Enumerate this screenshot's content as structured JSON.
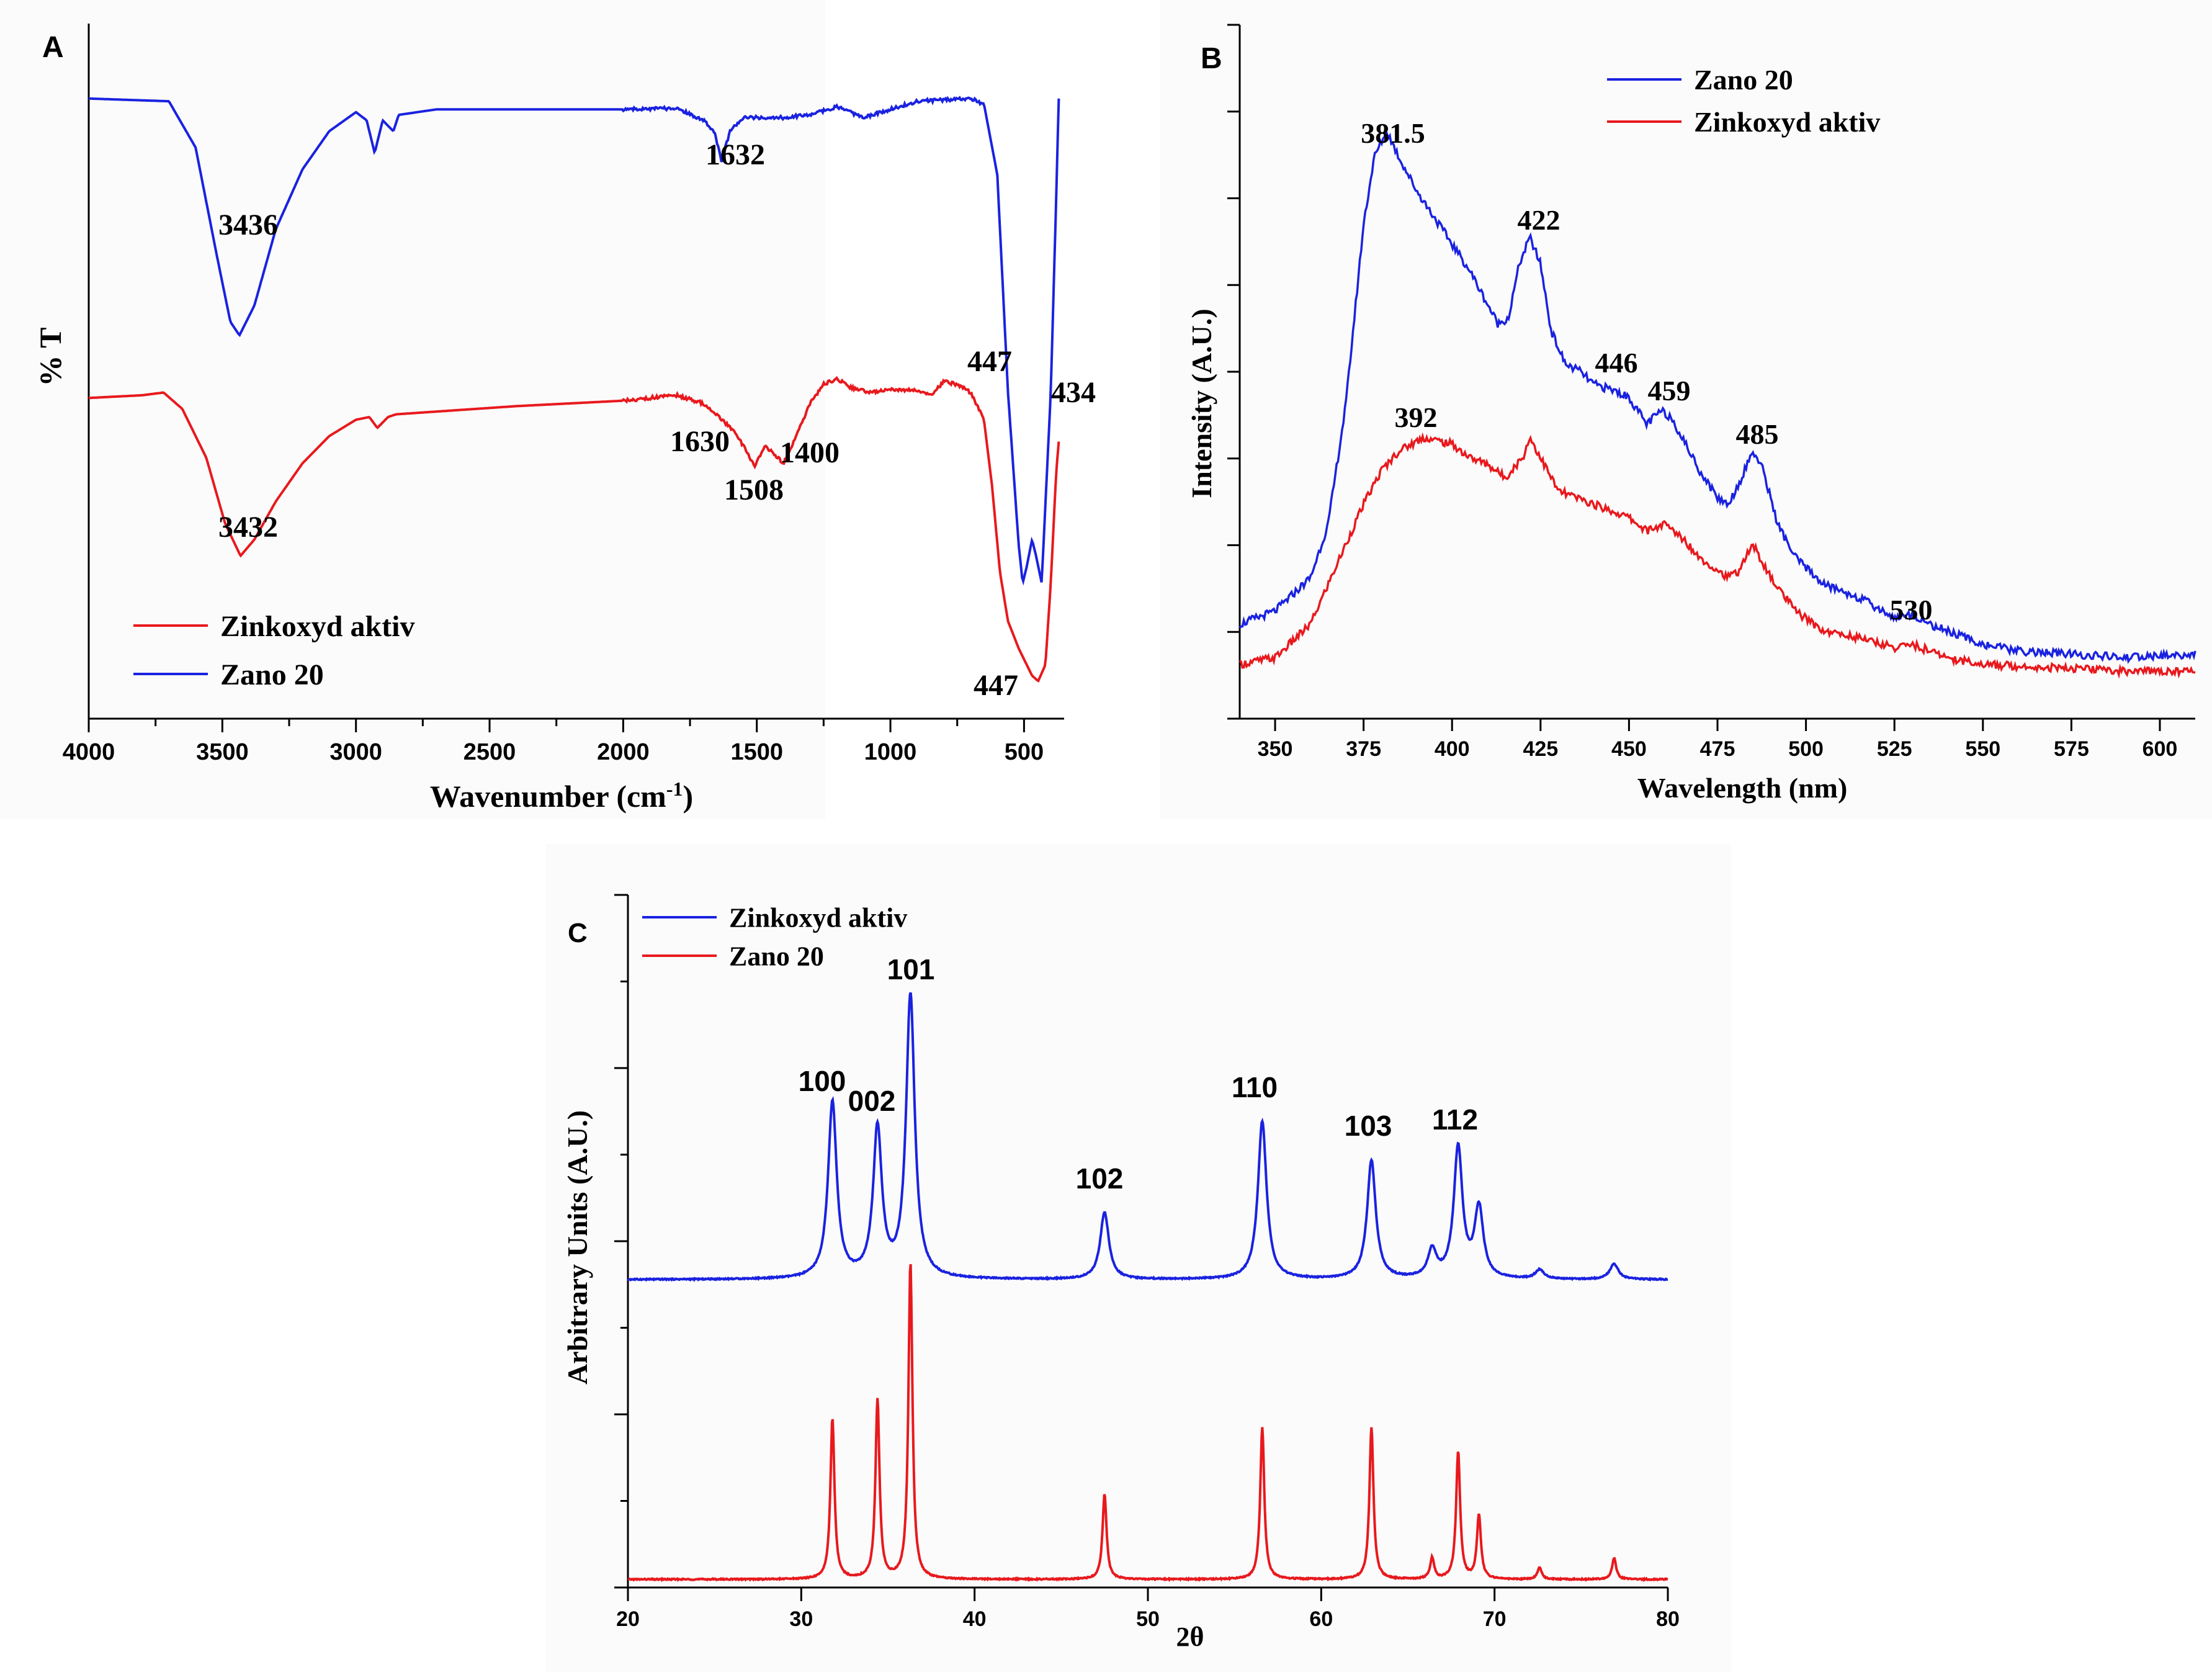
{
  "chart_data": [
    {
      "panel": "A",
      "type": "line",
      "xlabel": "Wavenumber (cm",
      "xlabel_sup": "-1",
      "xlabel_end": ")",
      "ylabel": "% T",
      "xlim": [
        4000,
        350
      ],
      "x_reversed": true,
      "x_ticks": [
        4000,
        3500,
        3000,
        2500,
        2000,
        1500,
        1000,
        500
      ],
      "legend": [
        {
          "name": "Zinkoxyd aktiv",
          "color": "#e8191d"
        },
        {
          "name": "Zano 20",
          "color": "#1a22e0"
        }
      ],
      "legend_position": "bottom-left",
      "series": [
        {
          "name": "Zano 20",
          "color": "#1a22e0",
          "points": [
            [
              4000,
              0.99
            ],
            [
              3700,
              0.985
            ],
            [
              3600,
              0.9
            ],
            [
              3520,
              0.7
            ],
            [
              3470,
              0.58
            ],
            [
              3436,
              0.555
            ],
            [
              3380,
              0.61
            ],
            [
              3300,
              0.75
            ],
            [
              3200,
              0.86
            ],
            [
              3100,
              0.93
            ],
            [
              3000,
              0.965
            ],
            [
              2960,
              0.95
            ],
            [
              2930,
              0.89
            ],
            [
              2900,
              0.95
            ],
            [
              2860,
              0.93
            ],
            [
              2840,
              0.96
            ],
            [
              2700,
              0.97
            ],
            [
              2000,
              0.97
            ],
            [
              1800,
              0.972
            ],
            [
              1700,
              0.95
            ],
            [
              1660,
              0.93
            ],
            [
              1632,
              0.875
            ],
            [
              1600,
              0.93
            ],
            [
              1550,
              0.955
            ],
            [
              1400,
              0.955
            ],
            [
              1300,
              0.96
            ],
            [
              1200,
              0.975
            ],
            [
              1100,
              0.955
            ],
            [
              1000,
              0.97
            ],
            [
              900,
              0.985
            ],
            [
              700,
              0.99
            ],
            [
              650,
              0.98
            ],
            [
              600,
              0.85
            ],
            [
              560,
              0.45
            ],
            [
              520,
              0.17
            ],
            [
              505,
              0.1
            ],
            [
              490,
              0.13
            ],
            [
              470,
              0.18
            ],
            [
              455,
              0.15
            ],
            [
              434,
              0.1
            ],
            [
              400,
              0.45
            ],
            [
              380,
              0.8
            ],
            [
              370,
              0.99
            ]
          ],
          "peak_labels": [
            {
              "text": "3436",
              "x": 3436,
              "y": 0.555
            },
            {
              "text": "1632",
              "x": 1632,
              "y": 0.875
            },
            {
              "text": "447",
              "x": 447,
              "y": 0.1
            },
            {
              "text": "434",
              "x": 434,
              "y": 0.1
            }
          ]
        },
        {
          "name": "Zinkoxyd aktiv",
          "color": "#e8191d",
          "points": [
            [
              4000,
              0.44
            ],
            [
              3800,
              0.445
            ],
            [
              3720,
              0.45
            ],
            [
              3650,
              0.42
            ],
            [
              3560,
              0.33
            ],
            [
              3490,
              0.21
            ],
            [
              3432,
              0.15
            ],
            [
              3380,
              0.18
            ],
            [
              3300,
              0.25
            ],
            [
              3200,
              0.32
            ],
            [
              3100,
              0.37
            ],
            [
              3000,
              0.4
            ],
            [
              2950,
              0.405
            ],
            [
              2920,
              0.385
            ],
            [
              2880,
              0.405
            ],
            [
              2850,
              0.41
            ],
            [
              2700,
              0.415
            ],
            [
              2400,
              0.425
            ],
            [
              2000,
              0.435
            ],
            [
              1800,
              0.445
            ],
            [
              1700,
              0.43
            ],
            [
              1630,
              0.4
            ],
            [
              1590,
              0.38
            ],
            [
              1560,
              0.36
            ],
            [
              1508,
              0.315
            ],
            [
              1470,
              0.35
            ],
            [
              1440,
              0.34
            ],
            [
              1400,
              0.32
            ],
            [
              1380,
              0.34
            ],
            [
              1300,
              0.43
            ],
            [
              1250,
              0.465
            ],
            [
              1200,
              0.475
            ],
            [
              1150,
              0.46
            ],
            [
              1080,
              0.45
            ],
            [
              1000,
              0.455
            ],
            [
              900,
              0.455
            ],
            [
              850,
              0.445
            ],
            [
              800,
              0.47
            ],
            [
              750,
              0.465
            ],
            [
              700,
              0.45
            ],
            [
              650,
              0.4
            ],
            [
              620,
              0.28
            ],
            [
              590,
              0.12
            ],
            [
              560,
              0.03
            ],
            [
              520,
              -0.02
            ],
            [
              490,
              -0.05
            ],
            [
              470,
              -0.07
            ],
            [
              447,
              -0.08
            ],
            [
              420,
              -0.05
            ],
            [
              400,
              0.1
            ],
            [
              380,
              0.3
            ],
            [
              370,
              0.36
            ]
          ],
          "peak_labels": [
            {
              "text": "3432",
              "x": 3432,
              "y": 0.15
            },
            {
              "text": "1630",
              "x": 1630,
              "y": 0.4
            },
            {
              "text": "1508",
              "x": 1508,
              "y": 0.315
            },
            {
              "text": "1400",
              "x": 1400,
              "y": 0.32
            },
            {
              "text": "447",
              "x": 447,
              "y": -0.08
            }
          ]
        }
      ]
    },
    {
      "panel": "B",
      "type": "line",
      "xlabel": "Wavelength (nm)",
      "ylabel": "Intensity (A.U.)",
      "xlim": [
        340,
        610
      ],
      "x_ticks": [
        350,
        375,
        400,
        425,
        450,
        475,
        500,
        525,
        550,
        575,
        600
      ],
      "legend": [
        {
          "name": "Zano 20",
          "color": "#1a22e0"
        },
        {
          "name": "Zinkoxyd aktiv",
          "color": "#e8191d"
        }
      ],
      "legend_position": "top-right",
      "series": [
        {
          "name": "Zano 20",
          "color": "#1a22e0",
          "points": [
            [
              340,
              0.12
            ],
            [
              350,
              0.14
            ],
            [
              360,
              0.19
            ],
            [
              365,
              0.27
            ],
            [
              370,
              0.45
            ],
            [
              375,
              0.72
            ],
            [
              378,
              0.82
            ],
            [
              381.5,
              0.86
            ],
            [
              385,
              0.82
            ],
            [
              390,
              0.77
            ],
            [
              395,
              0.73
            ],
            [
              400,
              0.69
            ],
            [
              405,
              0.65
            ],
            [
              410,
              0.6
            ],
            [
              413,
              0.57
            ],
            [
              416,
              0.58
            ],
            [
              419,
              0.66
            ],
            [
              422,
              0.7
            ],
            [
              425,
              0.66
            ],
            [
              428,
              0.56
            ],
            [
              432,
              0.51
            ],
            [
              436,
              0.5
            ],
            [
              440,
              0.48
            ],
            [
              446,
              0.47
            ],
            [
              450,
              0.46
            ],
            [
              455,
              0.42
            ],
            [
              459,
              0.44
            ],
            [
              462,
              0.43
            ],
            [
              466,
              0.39
            ],
            [
              470,
              0.35
            ],
            [
              475,
              0.31
            ],
            [
              478,
              0.3
            ],
            [
              481,
              0.33
            ],
            [
              485,
              0.38
            ],
            [
              488,
              0.35
            ],
            [
              492,
              0.27
            ],
            [
              497,
              0.22
            ],
            [
              505,
              0.18
            ],
            [
              515,
              0.16
            ],
            [
              525,
              0.13
            ],
            [
              530,
              0.135
            ],
            [
              535,
              0.12
            ],
            [
              545,
              0.1
            ],
            [
              550,
              0.09
            ],
            [
              560,
              0.08
            ],
            [
              575,
              0.075
            ],
            [
              590,
              0.07
            ],
            [
              610,
              0.075
            ]
          ],
          "peak_labels": [
            {
              "text": "381.5",
              "x": 381.5,
              "y": 0.86
            },
            {
              "text": "422",
              "x": 422,
              "y": 0.7
            },
            {
              "text": "446",
              "x": 446,
              "y": 0.47
            },
            {
              "text": "459",
              "x": 459,
              "y": 0.44
            },
            {
              "text": "485",
              "x": 485,
              "y": 0.38
            },
            {
              "text": "530",
              "x": 530,
              "y": 0.135
            }
          ]
        },
        {
          "name": "Zinkoxyd aktiv",
          "color": "#e8191d",
          "points": [
            [
              340,
              0.06
            ],
            [
              350,
              0.07
            ],
            [
              360,
              0.12
            ],
            [
              370,
              0.24
            ],
            [
              375,
              0.3
            ],
            [
              380,
              0.35
            ],
            [
              385,
              0.38
            ],
            [
              392,
              0.4
            ],
            [
              400,
              0.39
            ],
            [
              405,
              0.37
            ],
            [
              410,
              0.36
            ],
            [
              415,
              0.34
            ],
            [
              420,
              0.37
            ],
            [
              422,
              0.4
            ],
            [
              425,
              0.37
            ],
            [
              430,
              0.32
            ],
            [
              440,
              0.3
            ],
            [
              450,
              0.28
            ],
            [
              455,
              0.26
            ],
            [
              460,
              0.27
            ],
            [
              465,
              0.25
            ],
            [
              470,
              0.22
            ],
            [
              478,
              0.19
            ],
            [
              481,
              0.2
            ],
            [
              485,
              0.24
            ],
            [
              490,
              0.19
            ],
            [
              497,
              0.14
            ],
            [
              505,
              0.11
            ],
            [
              515,
              0.1
            ],
            [
              525,
              0.085
            ],
            [
              530,
              0.09
            ],
            [
              540,
              0.07
            ],
            [
              550,
              0.06
            ],
            [
              570,
              0.055
            ],
            [
              590,
              0.05
            ],
            [
              610,
              0.05
            ]
          ],
          "peak_labels": [
            {
              "text": "392",
              "x": 392,
              "y": 0.4
            }
          ]
        }
      ]
    },
    {
      "panel": "C",
      "type": "line",
      "xlabel": "2θ",
      "ylabel": "Arbitrary Units (A.U.)",
      "xlim": [
        20,
        80
      ],
      "x_ticks": [
        20,
        30,
        40,
        50,
        60,
        70,
        80
      ],
      "legend": [
        {
          "name": "Zinkoxyd aktiv",
          "color": "#1a22e0"
        },
        {
          "name": "Zano 20",
          "color": "#e8191d"
        }
      ],
      "legend_position": "top-left",
      "series": [
        {
          "name": "Zinkoxyd aktiv",
          "color": "#1a22e0",
          "baseline": 1.0,
          "peak_width": 0.3,
          "peaks": [
            {
              "x": 31.8,
              "h": 0.58,
              "label": "100"
            },
            {
              "x": 34.4,
              "h": 0.49,
              "label": "002"
            },
            {
              "x": 36.3,
              "h": 0.93,
              "label": "101"
            },
            {
              "x": 47.5,
              "h": 0.22,
              "label": "102"
            },
            {
              "x": 56.6,
              "h": 0.52,
              "label": "110"
            },
            {
              "x": 62.9,
              "h": 0.39,
              "label": "103"
            },
            {
              "x": 66.4,
              "h": 0.09
            },
            {
              "x": 67.9,
              "h": 0.43,
              "label": "112"
            },
            {
              "x": 69.1,
              "h": 0.23
            },
            {
              "x": 72.6,
              "h": 0.03
            },
            {
              "x": 76.9,
              "h": 0.05
            }
          ]
        },
        {
          "name": "Zano 20",
          "color": "#e8191d",
          "baseline": 0.0,
          "peak_width": 0.14,
          "peaks": [
            {
              "x": 31.8,
              "h": 0.53
            },
            {
              "x": 34.4,
              "h": 0.59
            },
            {
              "x": 36.3,
              "h": 1.04
            },
            {
              "x": 47.5,
              "h": 0.28
            },
            {
              "x": 56.6,
              "h": 0.5
            },
            {
              "x": 62.9,
              "h": 0.5
            },
            {
              "x": 66.4,
              "h": 0.07
            },
            {
              "x": 67.9,
              "h": 0.42
            },
            {
              "x": 69.1,
              "h": 0.21
            },
            {
              "x": 72.6,
              "h": 0.04
            },
            {
              "x": 76.9,
              "h": 0.07
            }
          ]
        }
      ]
    }
  ]
}
